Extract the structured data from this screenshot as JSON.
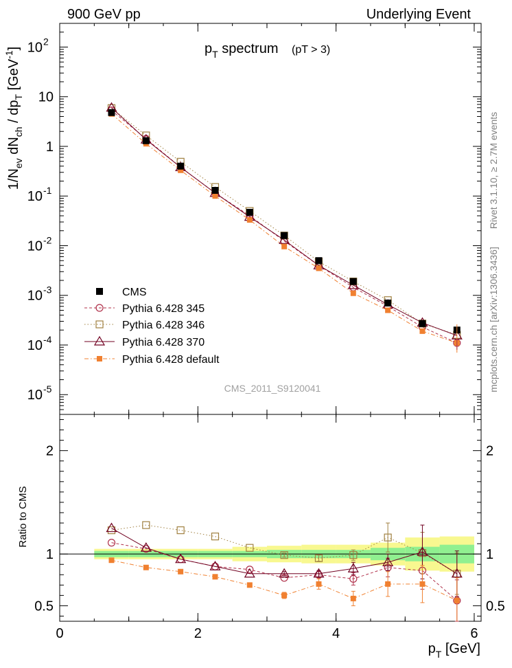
{
  "header": {
    "left": "900 GeV pp",
    "right": "Underlying Event"
  },
  "plot": {
    "title_main": "p",
    "title_sub": "T",
    "title_rest": " spectrum",
    "title_cut": "(pT >  3)",
    "analysis_id": "CMS_2011_S9120041",
    "side_rivet": "Rivet 3.1.10, ≥ 2.7M events",
    "side_mcplots": "mcplots.cern.ch [arXiv:1306.3436]"
  },
  "chart_data": {
    "type": "scatter",
    "x": [
      0.75,
      1.25,
      1.75,
      2.25,
      2.75,
      3.25,
      3.75,
      4.25,
      4.75,
      5.25,
      5.75
    ],
    "x_bins": [
      [
        0.5,
        1.0
      ],
      [
        1.0,
        1.5
      ],
      [
        1.5,
        2.0
      ],
      [
        2.0,
        2.5
      ],
      [
        2.5,
        3.0
      ],
      [
        3.0,
        3.5
      ],
      [
        3.5,
        4.0
      ],
      [
        4.0,
        4.5
      ],
      [
        4.5,
        5.0
      ],
      [
        5.0,
        5.5
      ],
      [
        5.5,
        6.0
      ]
    ],
    "main_panel": {
      "ylabel": "1/N_ev dN_ch / dp_T [GeV^-1]",
      "yscale": "log",
      "ylim": [
        4e-06,
        300
      ],
      "y_ticks": [
        "10^-5",
        "10^-4",
        "10^-3",
        "10^-2",
        "10^-1",
        "1",
        "10",
        "10^2"
      ]
    },
    "ratio_panel": {
      "ylabel": "Ratio to CMS",
      "ylim": [
        0.35,
        2.35
      ],
      "y_ticks": [
        "0.5",
        "1",
        "2"
      ]
    },
    "xlabel": "p_T [GeV]",
    "xlim": [
      0,
      6.1
    ],
    "x_ticks": [
      "0",
      "2",
      "4",
      "6"
    ],
    "series": [
      {
        "name": "CMS",
        "color": "#000000",
        "marker": "filled-square",
        "values": [
          4.8,
          1.3,
          0.4,
          0.13,
          0.047,
          0.016,
          0.005,
          0.0019,
          0.0007,
          0.00027,
          0.0002
        ]
      },
      {
        "name": "Pythia 6.428 345",
        "color": "#b0304a",
        "marker": "open-circle",
        "linestyle": "dashed",
        "values": [
          5.3,
          1.42,
          0.38,
          0.115,
          0.04,
          0.0124,
          0.004,
          0.00145,
          0.0006,
          0.00023,
          0.00011
        ],
        "ratio": [
          1.11,
          1.05,
          0.95,
          0.88,
          0.85,
          0.77,
          0.8,
          0.76,
          0.87,
          0.84,
          0.55
        ],
        "ratio_err": [
          0.01,
          0.01,
          0.01,
          0.01,
          0.01,
          0.01,
          0.03,
          0.06,
          0.09,
          0.18,
          0.2
        ]
      },
      {
        "name": "Pythia 6.428 346",
        "color": "#a08040",
        "marker": "open-square",
        "linestyle": "dotted",
        "values": [
          5.9,
          1.66,
          0.49,
          0.152,
          0.05,
          0.016,
          0.0048,
          0.0019,
          0.0008,
          0.00027,
          0.00016
        ],
        "ratio": [
          1.23,
          1.28,
          1.23,
          1.17,
          1.06,
          0.99,
          0.96,
          0.99,
          1.16,
          1.01,
          0.81
        ],
        "ratio_err": [
          0.01,
          0.01,
          0.01,
          0.01,
          0.01,
          0.02,
          0.03,
          0.05,
          0.14,
          0.2,
          0.2
        ]
      },
      {
        "name": "Pythia 6.428 370",
        "color": "#700020",
        "marker": "open-triangle",
        "linestyle": "solid",
        "values": [
          6.0,
          1.37,
          0.38,
          0.115,
          0.038,
          0.013,
          0.004,
          0.0016,
          0.00065,
          0.00028,
          0.000155
        ],
        "ratio": [
          1.25,
          1.06,
          0.95,
          0.88,
          0.81,
          0.81,
          0.81,
          0.86,
          0.92,
          1.02,
          0.81
        ],
        "ratio_err": [
          0.01,
          0.01,
          0.01,
          0.01,
          0.01,
          0.02,
          0.03,
          0.06,
          0.08,
          0.26,
          0.22
        ]
      },
      {
        "name": "Pythia 6.428 default",
        "color": "#f08030",
        "marker": "filled-square",
        "linestyle": "dashdot",
        "values": [
          4.5,
          1.13,
          0.33,
          0.1,
          0.033,
          0.0096,
          0.0035,
          0.0011,
          0.0005,
          0.00019,
          0.00011
        ],
        "ratio": [
          0.94,
          0.87,
          0.83,
          0.78,
          0.7,
          0.6,
          0.71,
          0.57,
          0.71,
          0.71,
          0.55
        ],
        "ratio_err": [
          0.01,
          0.01,
          0.01,
          0.01,
          0.01,
          0.03,
          0.05,
          0.07,
          0.12,
          0.18,
          0.22
        ]
      }
    ],
    "uncertainty_bands": {
      "inner_color": "#90f090",
      "outer_color": "#f8f890",
      "inner_halfwidth": [
        0.03,
        0.03,
        0.03,
        0.03,
        0.03,
        0.04,
        0.04,
        0.04,
        0.06,
        0.07,
        0.09
      ],
      "outer_halfwidth": [
        0.05,
        0.05,
        0.05,
        0.05,
        0.07,
        0.08,
        0.09,
        0.09,
        0.11,
        0.16,
        0.17
      ]
    },
    "legend_position": "bottom-left"
  }
}
